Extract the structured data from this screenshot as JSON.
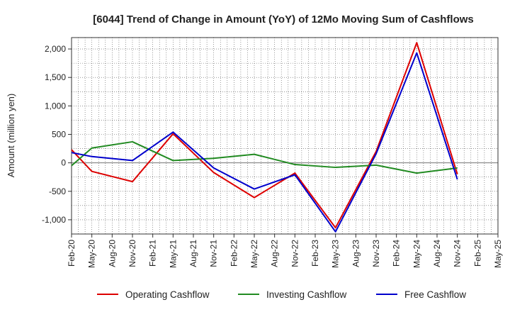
{
  "chart_data": {
    "type": "line",
    "title": "[6044]  Trend of Change in Amount (YoY) of 12Mo Moving Sum of Cashflows",
    "xlabel": "",
    "ylabel": "Amount (million yen)",
    "ylim": [
      -1250,
      2200
    ],
    "yticks": [
      -1000,
      -500,
      0,
      500,
      1000,
      1500,
      2000
    ],
    "ytick_labels": [
      "-1,000",
      "-500",
      "0",
      "500",
      "1,000",
      "1,500",
      "2,000"
    ],
    "categories": [
      "Feb-20",
      "May-20",
      "Aug-20",
      "Nov-20",
      "Feb-21",
      "May-21",
      "Aug-21",
      "Nov-21",
      "Feb-22",
      "May-22",
      "Aug-22",
      "Nov-22",
      "Feb-23",
      "May-23",
      "Aug-23",
      "Nov-23",
      "Feb-24",
      "May-24",
      "Aug-24",
      "Nov-24",
      "Feb-25",
      "May-25"
    ],
    "grid": true,
    "legend_position": "bottom",
    "series": [
      {
        "name": "Operating Cashflow",
        "color": "#dd0000",
        "values": [
          230,
          -150,
          null,
          -330,
          null,
          510,
          null,
          -170,
          null,
          -610,
          null,
          -180,
          null,
          -1140,
          null,
          200,
          null,
          2110,
          null,
          -200,
          null,
          null
        ]
      },
      {
        "name": "Investing Cashflow",
        "color": "#228b22",
        "values": [
          -50,
          260,
          null,
          370,
          null,
          40,
          null,
          80,
          null,
          150,
          null,
          -30,
          null,
          -80,
          null,
          -40,
          null,
          -180,
          null,
          -90,
          null,
          null
        ]
      },
      {
        "name": "Free Cashflow",
        "color": "#0000cc",
        "values": [
          180,
          110,
          null,
          40,
          null,
          540,
          null,
          -90,
          null,
          -460,
          null,
          -210,
          null,
          -1210,
          null,
          160,
          null,
          1930,
          null,
          -290,
          null,
          null
        ]
      }
    ]
  }
}
